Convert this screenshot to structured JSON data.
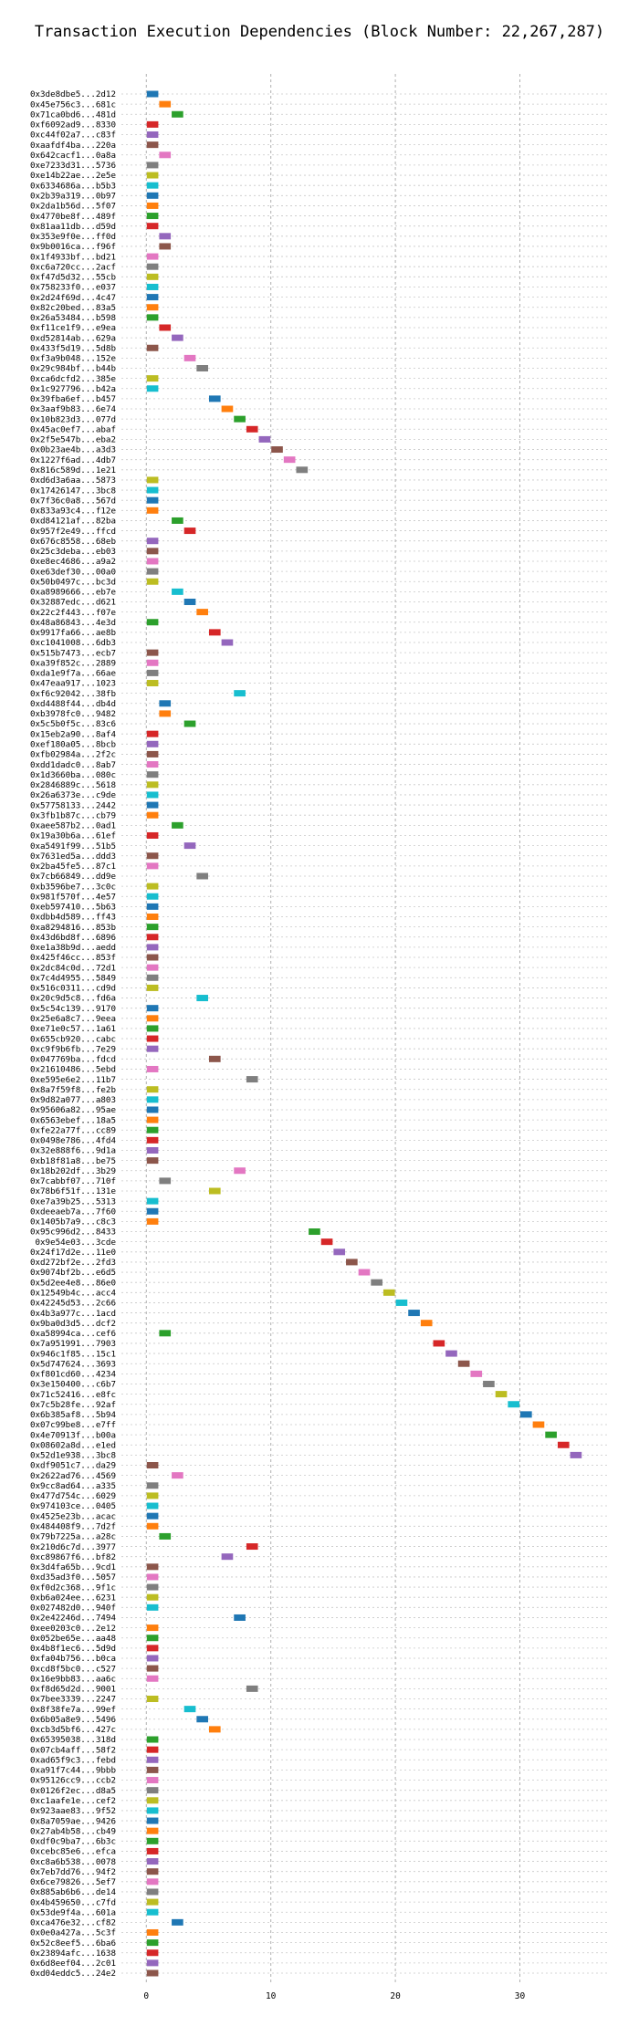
{
  "chart_data": {
    "type": "gantt",
    "title": "Transaction Execution Dependencies (Block Number: 22,267,287)",
    "xlabel": "",
    "ylabel": "",
    "xlim": [
      -2,
      37
    ],
    "xticks": [
      0,
      10,
      20,
      30
    ],
    "grid": true,
    "bar_width": 1,
    "palette": [
      "#1f77b4",
      "#ff7f0e",
      "#2ca02c",
      "#d62728",
      "#9467bd",
      "#8c564b",
      "#e377c2",
      "#7f7f7f",
      "#bcbd22",
      "#17becf"
    ],
    "transactions": [
      {
        "label": "0x3de8dbe5...2d12",
        "start": 0
      },
      {
        "label": "0x45e756c3...681c",
        "start": 1
      },
      {
        "label": "0x71ca0bd6...481d",
        "start": 2
      },
      {
        "label": "0xf6092ad9...8330",
        "start": 0
      },
      {
        "label": "0xc44f02a7...c83f",
        "start": 0
      },
      {
        "label": "0xaafdf4ba...220a",
        "start": 0
      },
      {
        "label": "0x642cacf1...0a8a",
        "start": 1
      },
      {
        "label": "0xe7233d31...5736",
        "start": 0
      },
      {
        "label": "0xe14b22ae...2e5e",
        "start": 0
      },
      {
        "label": "0x6334686a...b5b3",
        "start": 0
      },
      {
        "label": "0x2b39a319...0b97",
        "start": 0
      },
      {
        "label": "0x2da1b56d...5f07",
        "start": 0
      },
      {
        "label": "0x4770be8f...489f",
        "start": 0
      },
      {
        "label": "0x81aa11db...d59d",
        "start": 0
      },
      {
        "label": "0x353e9f0e...ff0d",
        "start": 1
      },
      {
        "label": "0x9b0016ca...f96f",
        "start": 1
      },
      {
        "label": "0x1f4933bf...bd21",
        "start": 0
      },
      {
        "label": "0xc6a720cc...2acf",
        "start": 0
      },
      {
        "label": "0xf47d5d32...55cb",
        "start": 0
      },
      {
        "label": "0x758233f0...e037",
        "start": 0
      },
      {
        "label": "0x2d24f69d...4c47",
        "start": 0
      },
      {
        "label": "0x82c20bed...83a5",
        "start": 0
      },
      {
        "label": "0x26a53484...b598",
        "start": 0
      },
      {
        "label": "0xf11ce1f9...e9ea",
        "start": 1
      },
      {
        "label": "0xd52814ab...629a",
        "start": 2
      },
      {
        "label": "0x433f5d19...5d8b",
        "start": 0
      },
      {
        "label": "0xf3a9b048...152e",
        "start": 3
      },
      {
        "label": "0x29c984bf...b44b",
        "start": 4
      },
      {
        "label": "0xca6dcfd2...385e",
        "start": 0
      },
      {
        "label": "0x1c927796...b42a",
        "start": 0
      },
      {
        "label": "0x39fba6ef...b457",
        "start": 5
      },
      {
        "label": "0x3aaf9b83...6e74",
        "start": 6
      },
      {
        "label": "0x10b823d3...077d",
        "start": 7
      },
      {
        "label": "0x45ac0ef7...abaf",
        "start": 8
      },
      {
        "label": "0x2f5e547b...eba2",
        "start": 9
      },
      {
        "label": "0x0b23ae4b...a3d3",
        "start": 10
      },
      {
        "label": "0x1227f6ad...4db7",
        "start": 11
      },
      {
        "label": "0x816c589d...1e21",
        "start": 12
      },
      {
        "label": "0xd6d3a6aa...5873",
        "start": 0
      },
      {
        "label": "0x17426147...3bc8",
        "start": 0
      },
      {
        "label": "0x7f36c0a8...567d",
        "start": 0
      },
      {
        "label": "0x833a93c4...f12e",
        "start": 0
      },
      {
        "label": "0xd84121af...82ba",
        "start": 2
      },
      {
        "label": "0x957f2e49...ffcd",
        "start": 3
      },
      {
        "label": "0x676c8558...68eb",
        "start": 0
      },
      {
        "label": "0x25c3deba...eb03",
        "start": 0
      },
      {
        "label": "0xe8ec4686...a9a2",
        "start": 0
      },
      {
        "label": "0xe63def30...00a0",
        "start": 0
      },
      {
        "label": "0x50b0497c...bc3d",
        "start": 0
      },
      {
        "label": "0xa8989666...eb7e",
        "start": 2
      },
      {
        "label": "0x32887edc...d621",
        "start": 3
      },
      {
        "label": "0x22c2f443...f07e",
        "start": 4
      },
      {
        "label": "0x48a86843...4e3d",
        "start": 0
      },
      {
        "label": "0x9917fa66...ae8b",
        "start": 5
      },
      {
        "label": "0xc1041008...6db3",
        "start": 6
      },
      {
        "label": "0x515b7473...ecb7",
        "start": 0
      },
      {
        "label": "0xa39f852c...2889",
        "start": 0
      },
      {
        "label": "0xda1e9f7a...66ae",
        "start": 0
      },
      {
        "label": "0x47eaa917...1023",
        "start": 0
      },
      {
        "label": "0xf6c92042...38fb",
        "start": 7
      },
      {
        "label": "0xd4488f44...db4d",
        "start": 1
      },
      {
        "label": "0xb3978fc0...9482",
        "start": 1
      },
      {
        "label": "0x5c5b0f5c...83c6",
        "start": 3
      },
      {
        "label": "0x15eb2a90...8af4",
        "start": 0
      },
      {
        "label": "0xef180a05...8bcb",
        "start": 0
      },
      {
        "label": "0xfb02984a...2f2c",
        "start": 0
      },
      {
        "label": "0xdd1dadc0...8ab7",
        "start": 0
      },
      {
        "label": "0x1d3660ba...080c",
        "start": 0
      },
      {
        "label": "0x2846889c...5618",
        "start": 0
      },
      {
        "label": "0x26a6373e...c9de",
        "start": 0
      },
      {
        "label": "0x57758133...2442",
        "start": 0
      },
      {
        "label": "0x3fb1b87c...cb79",
        "start": 0
      },
      {
        "label": "0xaee587b2...0ad1",
        "start": 2
      },
      {
        "label": "0x19a30b6a...61ef",
        "start": 0
      },
      {
        "label": "0xa5491f99...51b5",
        "start": 3
      },
      {
        "label": "0x7631ed5a...ddd3",
        "start": 0
      },
      {
        "label": "0x2ba45fe5...87c1",
        "start": 0
      },
      {
        "label": "0x7cb66849...dd9e",
        "start": 4
      },
      {
        "label": "0xb3596be7...3c0c",
        "start": 0
      },
      {
        "label": "0x981f570f...4e57",
        "start": 0
      },
      {
        "label": "0xeb597410...5b63",
        "start": 0
      },
      {
        "label": "0xdbb4d589...ff43",
        "start": 0
      },
      {
        "label": "0xa8294816...853b",
        "start": 0
      },
      {
        "label": "0x43d6bd8f...6896",
        "start": 0
      },
      {
        "label": "0xe1a38b9d...aedd",
        "start": 0
      },
      {
        "label": "0x425f46cc...853f",
        "start": 0
      },
      {
        "label": "0x2dc84c0d...72d1",
        "start": 0
      },
      {
        "label": "0x7c4d4955...5849",
        "start": 0
      },
      {
        "label": "0x516c0311...cd9d",
        "start": 0
      },
      {
        "label": "0x20c9d5c8...fd6a",
        "start": 4
      },
      {
        "label": "0x5c54c139...9170",
        "start": 0
      },
      {
        "label": "0x25e6a8c7...9eea",
        "start": 0
      },
      {
        "label": "0xe71e0c57...1a61",
        "start": 0
      },
      {
        "label": "0x655cb920...cabc",
        "start": 0
      },
      {
        "label": "0xc9f9b6fb...7e29",
        "start": 0
      },
      {
        "label": "0x047769ba...fdcd",
        "start": 5
      },
      {
        "label": "0x21610486...5ebd",
        "start": 0
      },
      {
        "label": "0xe595e6e2...11b7",
        "start": 8
      },
      {
        "label": "0x8a7f59f8...fe2b",
        "start": 0
      },
      {
        "label": "0x9d82a077...a803",
        "start": 0
      },
      {
        "label": "0x95606a82...95ae",
        "start": 0
      },
      {
        "label": "0x6563ebef...18a5",
        "start": 0
      },
      {
        "label": "0xfe22a77f...cc89",
        "start": 0
      },
      {
        "label": "0x0498e786...4fd4",
        "start": 0
      },
      {
        "label": "0x32e888f6...9d1a",
        "start": 0
      },
      {
        "label": "0xb18f81a8...be75",
        "start": 0
      },
      {
        "label": "0x18b202df...3b29",
        "start": 7
      },
      {
        "label": "0x7cabbf07...710f",
        "start": 1
      },
      {
        "label": "0x78b6f51f...131e",
        "start": 5
      },
      {
        "label": "0xe7a39b25...5313",
        "start": 0
      },
      {
        "label": "0xdeeaeb7a...7f60",
        "start": 0
      },
      {
        "label": "0x1405b7a9...c8c3",
        "start": 0
      },
      {
        "label": "0x95c996d2...8433",
        "start": 13
      },
      {
        "label": "0x9e54e03...3cde",
        "start": 14
      },
      {
        "label": "0x24f17d2e...11e0",
        "start": 15
      },
      {
        "label": "0xd272bf2e...2fd3",
        "start": 16
      },
      {
        "label": "0x9074bf2b...e6d5",
        "start": 17
      },
      {
        "label": "0x5d2ee4e8...86e0",
        "start": 18
      },
      {
        "label": "0x12549b4c...acc4",
        "start": 19
      },
      {
        "label": "0x42245d53...2c66",
        "start": 20
      },
      {
        "label": "0x4b3a977c...1acd",
        "start": 21
      },
      {
        "label": "0x9ba0d3d5...dcf2",
        "start": 22
      },
      {
        "label": "0xa58994ca...cef6",
        "start": 1
      },
      {
        "label": "0x7a951991...7903",
        "start": 23
      },
      {
        "label": "0x946c1f85...15c1",
        "start": 24
      },
      {
        "label": "0x5d747624...3693",
        "start": 25
      },
      {
        "label": "0xf801cd60...4234",
        "start": 26
      },
      {
        "label": "0x3e150400...c6b7",
        "start": 27
      },
      {
        "label": "0x71c52416...e8fc",
        "start": 28
      },
      {
        "label": "0x7c5b28fe...92af",
        "start": 29
      },
      {
        "label": "0x6b385af8...5b94",
        "start": 30
      },
      {
        "label": "0x07c99be8...e7ff",
        "start": 31
      },
      {
        "label": "0x4e70913f...b00a",
        "start": 32
      },
      {
        "label": "0x08602a8d...e1ed",
        "start": 33
      },
      {
        "label": "0x52d1e938...3bc8",
        "start": 34
      },
      {
        "label": "0xdf9051c7...da29",
        "start": 0
      },
      {
        "label": "0x2622ad76...4569",
        "start": 2
      },
      {
        "label": "0x9cc8ad64...a335",
        "start": 0
      },
      {
        "label": "0x477d754c...6029",
        "start": 0
      },
      {
        "label": "0x974103ce...0405",
        "start": 0
      },
      {
        "label": "0x4525e23b...acac",
        "start": 0
      },
      {
        "label": "0x484408f9...7d2f",
        "start": 0
      },
      {
        "label": "0x79b7225a...a28c",
        "start": 1
      },
      {
        "label": "0x210d6c7d...3977",
        "start": 8
      },
      {
        "label": "0xc89867f6...bf82",
        "start": 6
      },
      {
        "label": "0x3d4fa65b...9cd1",
        "start": 0
      },
      {
        "label": "0xd35ad3f0...5057",
        "start": 0
      },
      {
        "label": "0xf0d2c368...9f1c",
        "start": 0
      },
      {
        "label": "0xb6a024ee...6231",
        "start": 0
      },
      {
        "label": "0x027482d0...940f",
        "start": 0
      },
      {
        "label": "0x2e42246d...7494",
        "start": 7
      },
      {
        "label": "0xee0203c0...2e12",
        "start": 0
      },
      {
        "label": "0x052be65e...aa48",
        "start": 0
      },
      {
        "label": "0x4b8f1ec6...5d9d",
        "start": 0
      },
      {
        "label": "0xfa04b756...b0ca",
        "start": 0
      },
      {
        "label": "0xcd8f5bc0...c527",
        "start": 0
      },
      {
        "label": "0x16e9bb83...aa6c",
        "start": 0
      },
      {
        "label": "0xf8d65d2d...9001",
        "start": 8
      },
      {
        "label": "0x7bee3339...2247",
        "start": 0
      },
      {
        "label": "0x8f38fe7a...99ef",
        "start": 3
      },
      {
        "label": "0x6b05a8e9...5496",
        "start": 4
      },
      {
        "label": "0xcb3d5bf6...427c",
        "start": 5
      },
      {
        "label": "0x65395038...318d",
        "start": 0
      },
      {
        "label": "0x07cb4aff...58f2",
        "start": 0
      },
      {
        "label": "0xad65f9c3...febd",
        "start": 0
      },
      {
        "label": "0xa91f7c44...9bbb",
        "start": 0
      },
      {
        "label": "0x95126cc9...ccb2",
        "start": 0
      },
      {
        "label": "0x0126f2ec...d8a5",
        "start": 0
      },
      {
        "label": "0xc1aafe1e...cef2",
        "start": 0
      },
      {
        "label": "0x923aae83...9f52",
        "start": 0
      },
      {
        "label": "0x8a7059ae...9426",
        "start": 0
      },
      {
        "label": "0x27ab4b58...cb49",
        "start": 0
      },
      {
        "label": "0xdf0c9ba7...6b3c",
        "start": 0
      },
      {
        "label": "0xcebc85e6...efca",
        "start": 0
      },
      {
        "label": "0xc8a6b538...0078",
        "start": 0
      },
      {
        "label": "0x7eb7dd76...94f2",
        "start": 0
      },
      {
        "label": "0x6ce79826...5ef7",
        "start": 0
      },
      {
        "label": "0x885ab6b6...de14",
        "start": 0
      },
      {
        "label": "0x4b459650...c7fd",
        "start": 0
      },
      {
        "label": "0x53de9f4a...601a",
        "start": 0
      },
      {
        "label": "0xca476e32...cf82",
        "start": 2
      },
      {
        "label": "0x0e0a427a...5c3f",
        "start": 0
      },
      {
        "label": "0x52c8eef5...6ba6",
        "start": 0
      },
      {
        "label": "0x23894afc...1638",
        "start": 0
      },
      {
        "label": "0x6d8eef04...2c01",
        "start": 0
      },
      {
        "label": "0xd04eddc5...24e2",
        "start": 0
      }
    ]
  }
}
